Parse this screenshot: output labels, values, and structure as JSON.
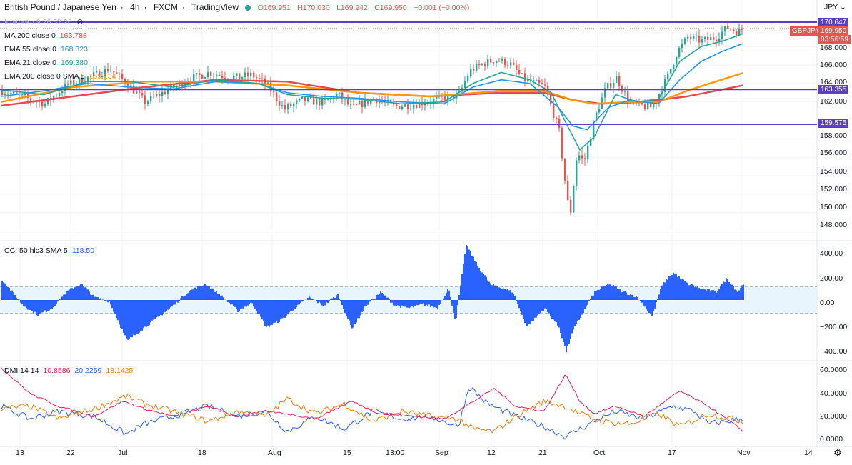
{
  "header": {
    "symbol": "British Pound / Japanese Yen",
    "interval": "4h",
    "exchange": "FXCM",
    "platform": "TradingView",
    "ohlc": {
      "o": "O169.951",
      "h": "H170.030",
      "l": "L169.942",
      "c": "C169.950",
      "chg": "−0.001 (−0.00%)"
    }
  },
  "currency": "JPY",
  "indicators": {
    "ichimoku": "Ichimoku 9 26 52 26",
    "ma200": {
      "label": "MA 200 close 0",
      "value": "163.788"
    },
    "ema55": {
      "label": "EMA 55 close 0",
      "value": "168.323"
    },
    "ema21": {
      "label": "EMA 21 close 0",
      "value": "169.380"
    },
    "ema200": {
      "label": "EMA 200 close 0 SMA 5",
      "value": "165.134"
    },
    "cci": {
      "label": "CCI 50 hlc3 SMA 5",
      "value": "118.50"
    },
    "dmi": {
      "label": "DMI 14 14",
      "v1": "10.8586",
      "v2": "20.2259",
      "v3": "18.1425"
    }
  },
  "price_tags": {
    "level_1": "170.647",
    "symbol_tag": "GBPJPY",
    "last": "169.950",
    "countdown": "03:56:59",
    "level_2": "163.355",
    "level_3": "159.575"
  },
  "price_axis": [
    "168.000",
    "166.000",
    "164.000",
    "162.000",
    "158.000",
    "156.000",
    "154.000",
    "152.000",
    "150.000",
    "148.000"
  ],
  "cci_axis": [
    "400.00",
    "200.00",
    "0.00",
    "−200.00",
    "−400.00"
  ],
  "dmi_axis": [
    "60.0000",
    "40.0000",
    "20.0000",
    "0.0000"
  ],
  "time_axis": [
    "13",
    "22",
    "Jul",
    "18",
    "Aug",
    "15",
    "13:00",
    "Sep",
    "12",
    "21",
    "Oct",
    "17",
    "Nov",
    "14"
  ],
  "colors": {
    "up": "#26a69a",
    "down": "#ef5350",
    "ma200": "#e5484d",
    "ema55": "#2196f3",
    "ema21": "#26a69a",
    "ema200": "#ff9800",
    "hline": "#5b3fc4",
    "cci": "#2962ff",
    "dmi_plus": "#2962ff",
    "dmi_minus": "#f57c00",
    "adx": "#e91e63"
  },
  "chart_data": {
    "type": "line",
    "title": "British Pound / Japanese Yen 4h FXCM",
    "x": [
      "13",
      "22",
      "Jul",
      "18",
      "Aug",
      "15",
      "Sep",
      "12",
      "21",
      "Oct",
      "17",
      "Nov"
    ],
    "ylim": [
      147.5,
      171.5
    ],
    "horizontal_levels": [
      170.647,
      163.355,
      159.575
    ],
    "series": [
      {
        "name": "GBPJPY close",
        "points": [
          [
            0,
            163.2
          ],
          [
            30,
            162.5
          ],
          [
            60,
            161.8
          ],
          [
            90,
            163.8
          ],
          [
            120,
            164.6
          ],
          [
            150,
            165.6
          ],
          [
            175,
            164.0
          ],
          [
            200,
            162.0
          ],
          [
            230,
            163.2
          ],
          [
            260,
            164.4
          ],
          [
            290,
            165.2
          ],
          [
            320,
            164.6
          ],
          [
            350,
            164.9
          ],
          [
            370,
            163.9
          ],
          [
            395,
            161.2
          ],
          [
            420,
            162.2
          ],
          [
            450,
            161.9
          ],
          [
            470,
            162.8
          ],
          [
            490,
            161.3
          ],
          [
            520,
            162.4
          ],
          [
            550,
            161.5
          ],
          [
            580,
            161.8
          ],
          [
            610,
            162.3
          ],
          [
            640,
            162.8
          ],
          [
            655,
            165.4
          ],
          [
            670,
            166.0
          ],
          [
            690,
            166.6
          ],
          [
            710,
            166.2
          ],
          [
            730,
            164.5
          ],
          [
            760,
            163.6
          ],
          [
            780,
            158.8
          ],
          [
            790,
            152.2
          ],
          [
            795,
            149.5
          ],
          [
            805,
            156.5
          ],
          [
            815,
            155.5
          ],
          [
            830,
            160.3
          ],
          [
            845,
            163.4
          ],
          [
            860,
            164.6
          ],
          [
            880,
            161.8
          ],
          [
            910,
            161.4
          ],
          [
            930,
            164.4
          ],
          [
            945,
            167.4
          ],
          [
            960,
            169.0
          ],
          [
            980,
            168.6
          ],
          [
            1000,
            169.0
          ],
          [
            1015,
            170.1
          ],
          [
            1030,
            169.6
          ],
          [
            1038,
            169.95
          ]
        ]
      },
      {
        "name": "EMA 21",
        "points": [
          [
            0,
            163.3
          ],
          [
            60,
            162.8
          ],
          [
            120,
            164.2
          ],
          [
            180,
            164.2
          ],
          [
            240,
            163.6
          ],
          [
            300,
            164.4
          ],
          [
            360,
            164.0
          ],
          [
            400,
            162.8
          ],
          [
            450,
            162.4
          ],
          [
            500,
            162.3
          ],
          [
            560,
            161.8
          ],
          [
            620,
            162.0
          ],
          [
            660,
            164.0
          ],
          [
            700,
            165.2
          ],
          [
            740,
            164.4
          ],
          [
            770,
            163.0
          ],
          [
            790,
            159.8
          ],
          [
            810,
            156.8
          ],
          [
            830,
            158.2
          ],
          [
            860,
            162.8
          ],
          [
            890,
            162.0
          ],
          [
            920,
            162.3
          ],
          [
            950,
            166.4
          ],
          [
            980,
            168.0
          ],
          [
            1010,
            168.6
          ],
          [
            1038,
            169.38
          ]
        ]
      },
      {
        "name": "EMA 55",
        "points": [
          [
            0,
            162.6
          ],
          [
            60,
            163.2
          ],
          [
            120,
            164.0
          ],
          [
            180,
            163.6
          ],
          [
            240,
            163.4
          ],
          [
            300,
            164.2
          ],
          [
            360,
            164.0
          ],
          [
            400,
            163.0
          ],
          [
            450,
            162.6
          ],
          [
            500,
            162.4
          ],
          [
            560,
            162.0
          ],
          [
            620,
            161.8
          ],
          [
            660,
            163.6
          ],
          [
            700,
            164.4
          ],
          [
            740,
            164.0
          ],
          [
            780,
            161.4
          ],
          [
            800,
            159.4
          ],
          [
            820,
            159.0
          ],
          [
            850,
            161.4
          ],
          [
            880,
            162.2
          ],
          [
            920,
            161.8
          ],
          [
            950,
            164.4
          ],
          [
            980,
            166.4
          ],
          [
            1010,
            167.5
          ],
          [
            1038,
            168.32
          ]
        ]
      },
      {
        "name": "EMA 200",
        "points": [
          [
            0,
            162.0
          ],
          [
            100,
            163.6
          ],
          [
            200,
            164.2
          ],
          [
            300,
            164.2
          ],
          [
            400,
            163.8
          ],
          [
            500,
            163.0
          ],
          [
            600,
            162.6
          ],
          [
            700,
            163.2
          ],
          [
            760,
            163.2
          ],
          [
            800,
            162.2
          ],
          [
            830,
            161.8
          ],
          [
            880,
            162.0
          ],
          [
            920,
            162.0
          ],
          [
            960,
            163.2
          ],
          [
            1000,
            164.2
          ],
          [
            1038,
            165.13
          ]
        ]
      },
      {
        "name": "MA 200",
        "points": [
          [
            0,
            161.6
          ],
          [
            100,
            162.6
          ],
          [
            200,
            163.6
          ],
          [
            300,
            164.4
          ],
          [
            400,
            164.2
          ],
          [
            500,
            163.0
          ],
          [
            600,
            162.6
          ],
          [
            700,
            163.0
          ],
          [
            760,
            163.0
          ],
          [
            800,
            162.2
          ],
          [
            840,
            161.8
          ],
          [
            900,
            162.0
          ],
          [
            960,
            162.6
          ],
          [
            1000,
            163.2
          ],
          [
            1038,
            163.79
          ]
        ]
      }
    ],
    "cci": {
      "ylim": [
        -420,
        420
      ],
      "points": [
        [
          0,
          150
        ],
        [
          30,
          -40
        ],
        [
          50,
          -110
        ],
        [
          70,
          -60
        ],
        [
          90,
          60
        ],
        [
          110,
          120
        ],
        [
          130,
          20
        ],
        [
          150,
          -10
        ],
        [
          175,
          -300
        ],
        [
          195,
          -220
        ],
        [
          215,
          -140
        ],
        [
          240,
          -40
        ],
        [
          260,
          60
        ],
        [
          285,
          120
        ],
        [
          305,
          40
        ],
        [
          330,
          -80
        ],
        [
          350,
          -20
        ],
        [
          370,
          -200
        ],
        [
          390,
          -150
        ],
        [
          410,
          -60
        ],
        [
          430,
          20
        ],
        [
          450,
          -40
        ],
        [
          470,
          40
        ],
        [
          490,
          -210
        ],
        [
          510,
          -40
        ],
        [
          530,
          60
        ],
        [
          550,
          -40
        ],
        [
          570,
          -60
        ],
        [
          590,
          -30
        ],
        [
          610,
          -60
        ],
        [
          625,
          90
        ],
        [
          635,
          -160
        ],
        [
          650,
          410
        ],
        [
          665,
          260
        ],
        [
          685,
          110
        ],
        [
          700,
          90
        ],
        [
          715,
          60
        ],
        [
          735,
          -200
        ],
        [
          760,
          -60
        ],
        [
          780,
          -200
        ],
        [
          790,
          -380
        ],
        [
          800,
          -220
        ],
        [
          815,
          -80
        ],
        [
          830,
          60
        ],
        [
          850,
          120
        ],
        [
          870,
          60
        ],
        [
          890,
          20
        ],
        [
          910,
          -120
        ],
        [
          925,
          120
        ],
        [
          940,
          200
        ],
        [
          960,
          120
        ],
        [
          980,
          80
        ],
        [
          1000,
          60
        ],
        [
          1015,
          160
        ],
        [
          1030,
          60
        ],
        [
          1038,
          118.5
        ]
      ]
    },
    "dmi": {
      "ylim": [
        0,
        63
      ],
      "adx": [
        [
          0,
          60
        ],
        [
          40,
          40
        ],
        [
          80,
          30
        ],
        [
          130,
          22
        ],
        [
          170,
          34
        ],
        [
          200,
          28
        ],
        [
          240,
          22
        ],
        [
          290,
          30
        ],
        [
          330,
          22
        ],
        [
          370,
          26
        ],
        [
          400,
          24
        ],
        [
          440,
          20
        ],
        [
          490,
          34
        ],
        [
          530,
          24
        ],
        [
          580,
          22
        ],
        [
          620,
          20
        ],
        [
          650,
          30
        ],
        [
          690,
          44
        ],
        [
          720,
          30
        ],
        [
          760,
          26
        ],
        [
          790,
          55
        ],
        [
          810,
          34
        ],
        [
          830,
          24
        ],
        [
          860,
          30
        ],
        [
          900,
          22
        ],
        [
          950,
          42
        ],
        [
          990,
          30
        ],
        [
          1038,
          10.86
        ]
      ],
      "plus": [
        [
          0,
          30
        ],
        [
          40,
          20
        ],
        [
          80,
          26
        ],
        [
          130,
          22
        ],
        [
          175,
          8
        ],
        [
          200,
          16
        ],
        [
          240,
          22
        ],
        [
          290,
          30
        ],
        [
          330,
          22
        ],
        [
          370,
          26
        ],
        [
          400,
          10
        ],
        [
          440,
          22
        ],
        [
          480,
          12
        ],
        [
          520,
          26
        ],
        [
          560,
          20
        ],
        [
          600,
          22
        ],
        [
          640,
          14
        ],
        [
          655,
          46
        ],
        [
          680,
          32
        ],
        [
          720,
          22
        ],
        [
          760,
          14
        ],
        [
          790,
          6
        ],
        [
          810,
          12
        ],
        [
          830,
          18
        ],
        [
          860,
          26
        ],
        [
          900,
          20
        ],
        [
          940,
          30
        ],
        [
          970,
          26
        ],
        [
          990,
          16
        ],
        [
          1038,
          20.23
        ]
      ],
      "minus": [
        [
          0,
          28
        ],
        [
          40,
          30
        ],
        [
          80,
          20
        ],
        [
          130,
          28
        ],
        [
          175,
          38
        ],
        [
          200,
          32
        ],
        [
          240,
          26
        ],
        [
          290,
          18
        ],
        [
          330,
          26
        ],
        [
          370,
          22
        ],
        [
          400,
          36
        ],
        [
          440,
          24
        ],
        [
          480,
          32
        ],
        [
          520,
          18
        ],
        [
          560,
          26
        ],
        [
          600,
          22
        ],
        [
          640,
          20
        ],
        [
          660,
          12
        ],
        [
          690,
          10
        ],
        [
          720,
          22
        ],
        [
          760,
          34
        ],
        [
          790,
          30
        ],
        [
          810,
          24
        ],
        [
          840,
          18
        ],
        [
          880,
          16
        ],
        [
          920,
          24
        ],
        [
          950,
          14
        ],
        [
          990,
          24
        ],
        [
          1038,
          18.14
        ]
      ]
    }
  }
}
